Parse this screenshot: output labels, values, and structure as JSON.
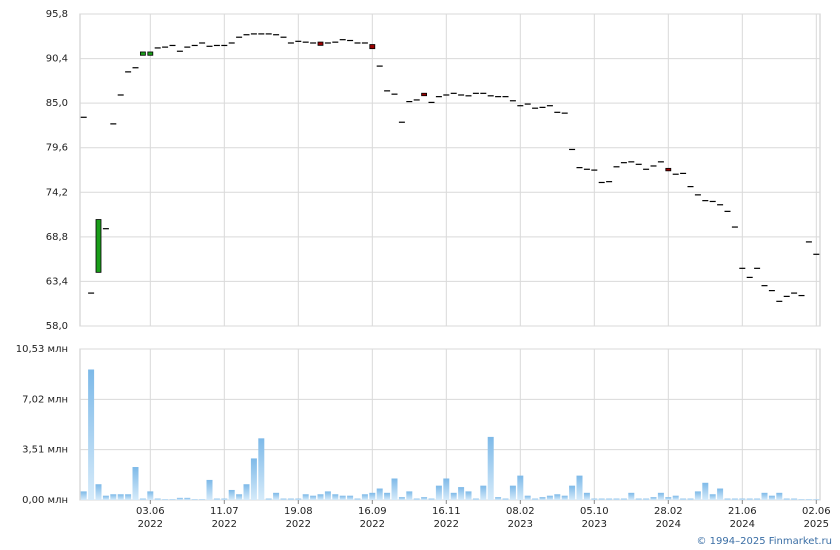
{
  "chart_data": {
    "type": "candlestick",
    "categories": [
      null,
      null,
      null,
      null,
      null,
      null,
      null,
      null,
      null,
      [
        "03.06",
        "2022"
      ],
      null,
      null,
      null,
      null,
      null,
      null,
      null,
      null,
      null,
      [
        "11.07",
        "2022"
      ],
      null,
      null,
      null,
      null,
      null,
      null,
      null,
      null,
      null,
      [
        "19.08",
        "2022"
      ],
      null,
      null,
      null,
      null,
      null,
      null,
      null,
      null,
      null,
      [
        "16.09",
        "2022"
      ],
      null,
      null,
      null,
      null,
      null,
      null,
      null,
      null,
      null,
      [
        "16.11",
        "2022"
      ],
      null,
      null,
      null,
      null,
      null,
      null,
      null,
      null,
      null,
      [
        "08.02",
        "2023"
      ],
      null,
      null,
      null,
      null,
      null,
      null,
      null,
      null,
      null,
      [
        "05.10",
        "2023"
      ],
      null,
      null,
      null,
      null,
      null,
      null,
      null,
      null,
      null,
      [
        "28.02",
        "2024"
      ],
      null,
      null,
      null,
      null,
      null,
      null,
      null,
      null,
      null,
      [
        "21.06",
        "2024"
      ],
      null,
      null,
      null,
      null,
      null,
      null,
      null,
      null,
      null,
      [
        "02.06",
        "2025"
      ]
    ],
    "open": [
      83.3,
      62.0,
      64.5,
      69.8,
      82.5,
      86.0,
      88.8,
      89.3,
      90.8,
      90.8,
      91.7,
      91.8,
      92.0,
      91.3,
      91.8,
      92.0,
      92.3,
      91.9,
      92.0,
      92.0,
      92.3,
      93.0,
      93.3,
      93.4,
      93.4,
      93.4,
      93.3,
      93.0,
      92.3,
      92.5,
      92.4,
      92.3,
      92.4,
      92.3,
      92.4,
      92.7,
      92.6,
      92.3,
      92.3,
      92.1,
      89.5,
      86.5,
      86.1,
      82.7,
      85.2,
      85.4,
      86.2,
      85.1,
      85.8,
      86.0,
      86.2,
      86.0,
      85.9,
      86.2,
      86.2,
      85.9,
      85.8,
      85.8,
      85.3,
      84.7,
      84.9,
      84.4,
      84.5,
      84.7,
      83.9,
      83.8,
      79.4,
      77.2,
      77.0,
      76.9,
      75.4,
      75.5,
      77.3,
      77.8,
      77.9,
      77.6,
      77.0,
      77.4,
      77.9,
      77.1,
      76.4,
      76.5,
      74.9,
      73.9,
      73.2,
      73.1,
      72.7,
      71.9,
      70.0,
      65.0,
      63.9,
      65.0,
      62.9,
      62.3,
      61.0,
      61.6,
      62.0,
      61.7,
      68.2,
      66.7
    ],
    "close": [
      83.3,
      62.0,
      70.9,
      69.8,
      82.5,
      86.0,
      88.8,
      89.3,
      91.2,
      91.2,
      91.7,
      91.8,
      92.0,
      91.3,
      91.8,
      92.0,
      92.3,
      91.9,
      92.0,
      92.0,
      92.3,
      93.0,
      93.3,
      93.4,
      93.4,
      93.4,
      93.3,
      93.0,
      92.3,
      92.5,
      92.4,
      92.3,
      92.0,
      92.3,
      92.4,
      92.7,
      92.6,
      92.3,
      92.3,
      91.6,
      89.5,
      86.5,
      86.1,
      82.7,
      85.2,
      85.4,
      85.9,
      85.1,
      85.8,
      86.0,
      86.2,
      86.0,
      85.9,
      86.2,
      86.2,
      85.9,
      85.8,
      85.8,
      85.3,
      84.7,
      84.9,
      84.4,
      84.5,
      84.7,
      83.9,
      83.8,
      79.4,
      77.2,
      77.0,
      76.9,
      75.4,
      75.5,
      77.3,
      77.8,
      77.9,
      77.6,
      77.0,
      77.4,
      77.9,
      76.8,
      76.4,
      76.5,
      74.9,
      73.9,
      73.2,
      73.1,
      72.7,
      71.9,
      70.0,
      65.0,
      63.9,
      65.0,
      62.9,
      62.3,
      61.0,
      61.6,
      62.0,
      61.7,
      68.2,
      66.7
    ],
    "ylim": [
      58.0,
      95.8
    ],
    "yticks": [
      {
        "value": 58.0,
        "label": "58,0"
      },
      {
        "value": 63.4,
        "label": "63,4"
      },
      {
        "value": 68.8,
        "label": "68,8"
      },
      {
        "value": 74.2,
        "label": "74,2"
      },
      {
        "value": 79.6,
        "label": "79,6"
      },
      {
        "value": 85.0,
        "label": "85,0"
      },
      {
        "value": 90.4,
        "label": "90,4"
      },
      {
        "value": 95.8,
        "label": "95,8"
      }
    ],
    "up_color": "#1a9e1a",
    "down_color": "#990000",
    "flat_color": "#000000",
    "grid": true,
    "volume": {
      "type": "bar",
      "color": "#7db9e8",
      "values": [
        0.6,
        9.1,
        1.1,
        0.3,
        0.4,
        0.4,
        0.4,
        2.3,
        0.1,
        0.6,
        0.1,
        0.05,
        0.05,
        0.15,
        0.15,
        0.05,
        0.05,
        1.4,
        0.1,
        0.1,
        0.7,
        0.4,
        1.1,
        2.9,
        4.3,
        0.1,
        0.5,
        0.1,
        0.1,
        0.1,
        0.4,
        0.3,
        0.4,
        0.6,
        0.4,
        0.3,
        0.3,
        0.1,
        0.4,
        0.5,
        0.8,
        0.5,
        1.5,
        0.2,
        0.6,
        0.1,
        0.2,
        0.1,
        1.0,
        1.5,
        0.5,
        0.9,
        0.6,
        0.1,
        1.0,
        4.4,
        0.2,
        0.1,
        1.0,
        1.7,
        0.3,
        0.1,
        0.2,
        0.3,
        0.4,
        0.3,
        1.0,
        1.7,
        0.5,
        0.1,
        0.1,
        0.1,
        0.1,
        0.1,
        0.5,
        0.1,
        0.1,
        0.2,
        0.5,
        0.2,
        0.3,
        0.1,
        0.1,
        0.6,
        1.2,
        0.4,
        0.8,
        0.1,
        0.1,
        0.1,
        0.1,
        0.1,
        0.5,
        0.3,
        0.5,
        0.1,
        0.1,
        0.05,
        0.05,
        0.05
      ],
      "ylim": [
        0,
        10.53
      ],
      "yticks": [
        {
          "value": 0,
          "label": "0,00 млн"
        },
        {
          "value": 3.51,
          "label": "3,51 млн"
        },
        {
          "value": 7.02,
          "label": "7,02 млн"
        },
        {
          "value": 10.53,
          "label": "10,53 млн"
        }
      ]
    }
  },
  "footer": "© 1994–2025 Finmarket.ru"
}
